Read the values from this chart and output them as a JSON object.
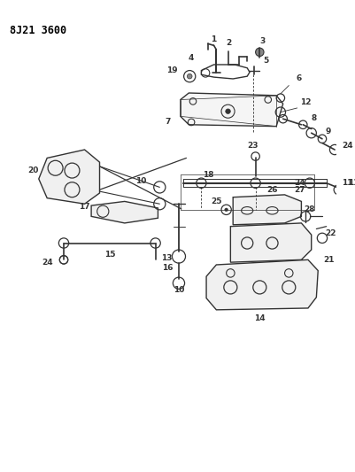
{
  "title": "8J21 3600",
  "bg_color": "#ffffff",
  "line_color": "#333333",
  "fig_width": 4.02,
  "fig_height": 5.33,
  "dpi": 100,
  "label_fontsize": 6.5
}
